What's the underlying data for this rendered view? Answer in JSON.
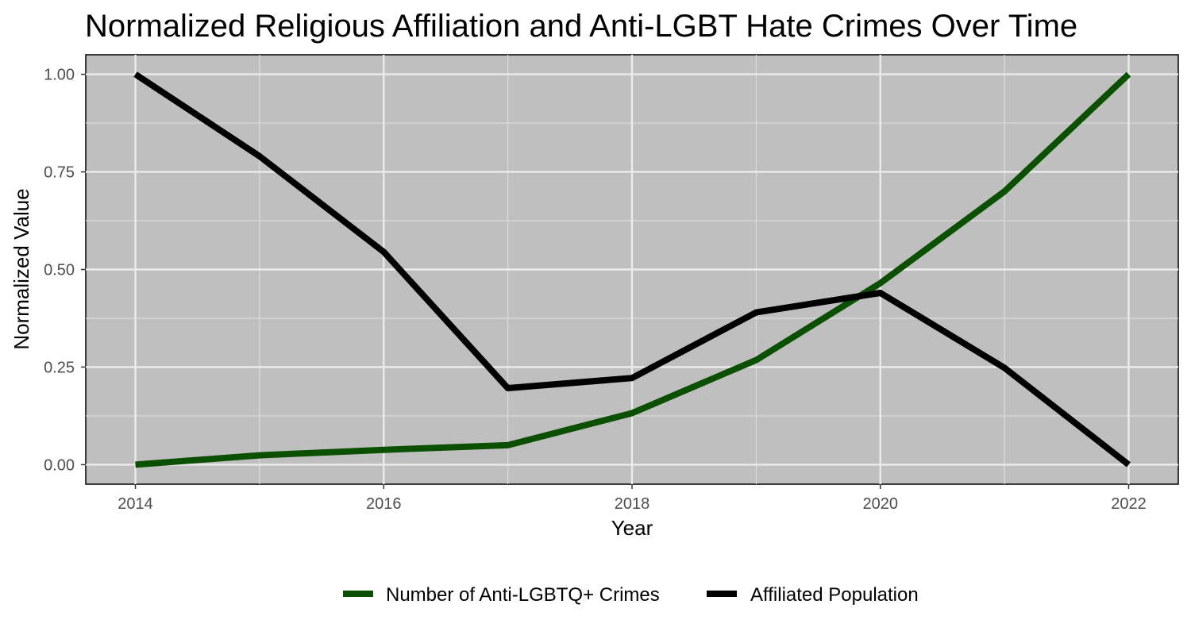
{
  "chart_data": {
    "type": "line",
    "title": "Normalized Religious Affiliation and Anti-LGBT Hate Crimes Over Time",
    "xlabel": "Year",
    "ylabel": "Normalized Value",
    "x": [
      2014,
      2015,
      2016,
      2017,
      2018,
      2019,
      2020,
      2021,
      2022
    ],
    "xlim": [
      2013.6,
      2022.4
    ],
    "ylim": [
      -0.05,
      1.05
    ],
    "x_ticks": [
      "2014",
      "2016",
      "2018",
      "2020",
      "2022"
    ],
    "y_ticks": [
      "0.00",
      "0.25",
      "0.50",
      "0.75",
      "1.00"
    ],
    "grid": true,
    "legend_position": "bottom",
    "series": [
      {
        "name": "Number of Anti-LGBTQ+ Crimes",
        "color": "#0a5000",
        "values": [
          0.0,
          0.024,
          0.038,
          0.05,
          0.132,
          0.268,
          0.465,
          0.7,
          1.0
        ]
      },
      {
        "name": "Affiliated Population",
        "color": "#000000",
        "values": [
          1.0,
          0.79,
          0.545,
          0.196,
          0.222,
          0.39,
          0.44,
          0.248,
          0.0
        ]
      }
    ]
  }
}
